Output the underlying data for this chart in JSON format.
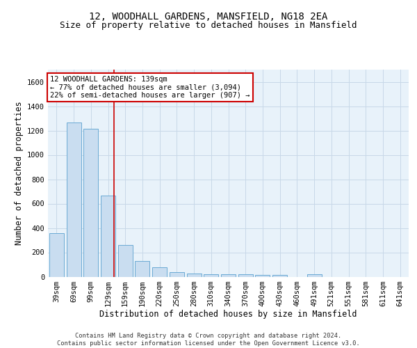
{
  "title1": "12, WOODHALL GARDENS, MANSFIELD, NG18 2EA",
  "title2": "Size of property relative to detached houses in Mansfield",
  "xlabel": "Distribution of detached houses by size in Mansfield",
  "ylabel": "Number of detached properties",
  "footer": "Contains HM Land Registry data © Crown copyright and database right 2024.\nContains public sector information licensed under the Open Government Licence v3.0.",
  "categories": [
    "39sqm",
    "69sqm",
    "99sqm",
    "129sqm",
    "159sqm",
    "190sqm",
    "220sqm",
    "250sqm",
    "280sqm",
    "310sqm",
    "340sqm",
    "370sqm",
    "400sqm",
    "430sqm",
    "460sqm",
    "491sqm",
    "521sqm",
    "551sqm",
    "581sqm",
    "611sqm",
    "641sqm"
  ],
  "values": [
    360,
    1265,
    1215,
    665,
    260,
    130,
    75,
    40,
    25,
    18,
    18,
    18,
    15,
    15,
    0,
    20,
    0,
    0,
    0,
    0,
    0
  ],
  "bar_color": "#c9ddf0",
  "bar_edge_color": "#6aaad4",
  "red_line_x": 3.33,
  "annotation_text": "12 WOODHALL GARDENS: 139sqm\n← 77% of detached houses are smaller (3,094)\n22% of semi-detached houses are larger (907) →",
  "annotation_box_color": "#ffffff",
  "annotation_box_edge": "#cc0000",
  "red_line_color": "#cc0000",
  "ylim": [
    0,
    1700
  ],
  "yticks": [
    0,
    200,
    400,
    600,
    800,
    1000,
    1200,
    1400,
    1600
  ],
  "grid_color": "#c8d8e8",
  "bg_color": "#e8f2fa",
  "title_fontsize": 10,
  "subtitle_fontsize": 9,
  "tick_fontsize": 7.5,
  "ylabel_fontsize": 8.5,
  "xlabel_fontsize": 8.5,
  "ann_fontsize": 7.5
}
